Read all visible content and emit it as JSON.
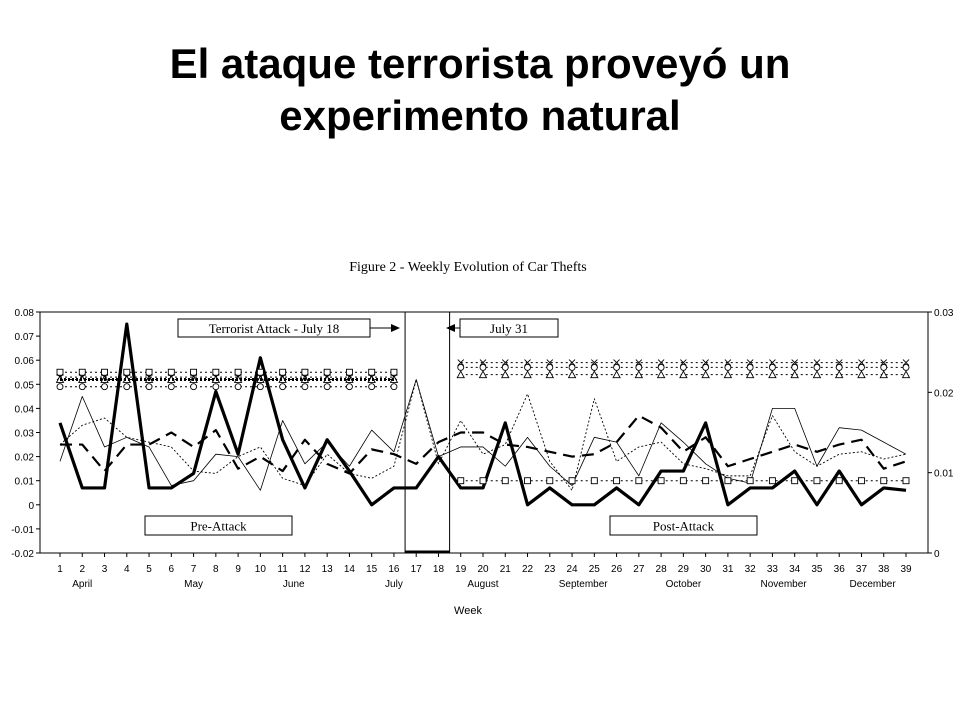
{
  "slide": {
    "title_line1": "El ataque terrorista proveyó un",
    "title_line2": "experimento natural"
  },
  "chart_data": {
    "type": "line",
    "title": "Figure 2 - Weekly Evolution of Car Thefts",
    "xlabel": "Week",
    "ylabel": "",
    "x": [
      1,
      2,
      3,
      4,
      5,
      6,
      7,
      8,
      9,
      10,
      11,
      12,
      13,
      14,
      15,
      16,
      17,
      18,
      19,
      20,
      21,
      22,
      23,
      24,
      25,
      26,
      27,
      28,
      29,
      30,
      31,
      32,
      33,
      34,
      35,
      36,
      37,
      38,
      39
    ],
    "xlim": [
      1,
      39
    ],
    "ylim": [
      -0.02,
      0.08
    ],
    "yticks": [
      "-0.02",
      "-0.01",
      "0",
      "0.01",
      "0.02",
      "0.03",
      "0.04",
      "0.05",
      "0.06",
      "0.07",
      "0.08"
    ],
    "ylim_right": [
      0,
      0.03
    ],
    "yticks_right": [
      "0",
      "0.01",
      "0.02",
      "0.03"
    ],
    "months": [
      {
        "name": "April",
        "week": 2
      },
      {
        "name": "May",
        "week": 7
      },
      {
        "name": "June",
        "week": 11.5
      },
      {
        "name": "July",
        "week": 16
      },
      {
        "name": "August",
        "week": 20
      },
      {
        "name": "September",
        "week": 24.5
      },
      {
        "name": "October",
        "week": 29
      },
      {
        "name": "November",
        "week": 33.5
      },
      {
        "name": "December",
        "week": 37.5
      }
    ],
    "attack_window": [
      16.5,
      18.5
    ],
    "annotations": {
      "attack": "Terrorist Attack - July 18",
      "july31": "July 31",
      "pre": "Pre-Attack",
      "post": "Post-Attack"
    },
    "series": [
      {
        "style": "thick-solid",
        "axis": "left",
        "values": [
          0.034,
          0.007,
          0.007,
          0.075,
          0.007,
          0.007,
          0.013,
          0.047,
          0.021,
          0.061,
          0.027,
          0.007,
          0.027,
          0.014,
          0.0,
          0.007,
          0.007,
          0.02,
          0.007,
          0.007,
          0.034,
          0.0,
          0.007,
          0.0,
          0.0,
          0.007,
          0.0,
          0.014,
          0.014,
          0.034,
          0.0,
          0.007,
          0.007,
          0.014,
          0.0,
          0.014,
          0.0,
          0.007,
          0.006
        ]
      },
      {
        "style": "dashed",
        "axis": "left",
        "values": [
          0.025,
          0.025,
          0.014,
          0.025,
          0.025,
          0.03,
          0.024,
          0.031,
          0.015,
          0.02,
          0.014,
          0.027,
          0.017,
          0.013,
          0.023,
          0.021,
          0.017,
          0.026,
          0.03,
          0.03,
          0.025,
          0.024,
          0.022,
          0.02,
          0.021,
          0.026,
          0.037,
          0.032,
          0.022,
          0.028,
          0.016,
          0.019,
          0.022,
          0.025,
          0.022,
          0.025,
          0.027,
          0.015,
          0.018
        ]
      },
      {
        "style": "thin-solid",
        "axis": "left",
        "values": [
          0.018,
          0.045,
          0.024,
          0.028,
          0.024,
          0.008,
          0.01,
          0.021,
          0.02,
          0.006,
          0.035,
          0.017,
          0.026,
          0.016,
          0.031,
          0.022,
          0.052,
          0.02,
          0.024,
          0.024,
          0.016,
          0.028,
          0.016,
          0.008,
          0.028,
          0.026,
          0.012,
          0.034,
          0.026,
          0.017,
          0.011,
          0.009,
          0.04,
          0.04,
          0.016,
          0.032,
          0.031,
          0.026,
          0.021
        ]
      },
      {
        "style": "dotted",
        "axis": "left",
        "values": [
          0.025,
          0.033,
          0.036,
          0.028,
          0.026,
          0.024,
          0.014,
          0.013,
          0.02,
          0.024,
          0.011,
          0.008,
          0.021,
          0.013,
          0.011,
          0.016,
          0.052,
          0.017,
          0.035,
          0.021,
          0.025,
          0.046,
          0.018,
          0.006,
          0.044,
          0.018,
          0.024,
          0.026,
          0.017,
          0.015,
          0.012,
          0.012,
          0.037,
          0.022,
          0.016,
          0.021,
          0.022,
          0.019,
          0.021
        ]
      },
      {
        "style": "dotted-square",
        "axis": "left",
        "values": [
          0.055,
          0.055,
          0.055,
          0.055,
          0.055,
          0.055,
          0.055,
          0.055,
          0.055,
          0.055,
          0.055,
          0.055,
          0.055,
          0.055,
          0.055,
          0.055,
          null,
          null,
          0.01,
          0.01,
          0.01,
          0.01,
          0.01,
          0.01,
          0.01,
          0.01,
          0.01,
          0.01,
          0.01,
          0.01,
          0.01,
          0.01,
          0.01,
          0.01,
          0.01,
          0.01,
          0.01,
          0.01,
          0.01
        ]
      },
      {
        "style": "dotted-x",
        "axis": "left",
        "values": [
          0.053,
          0.053,
          0.053,
          0.053,
          0.053,
          0.053,
          0.053,
          0.053,
          0.053,
          0.053,
          0.053,
          0.053,
          0.053,
          0.053,
          0.053,
          0.053,
          null,
          null,
          0.059,
          0.059,
          0.059,
          0.059,
          0.059,
          0.059,
          0.059,
          0.059,
          0.059,
          0.059,
          0.059,
          0.059,
          0.059,
          0.059,
          0.059,
          0.059,
          0.059,
          0.059,
          0.059,
          0.059,
          0.059
        ]
      },
      {
        "style": "dotted-circle",
        "axis": "left",
        "values": [
          0.049,
          0.049,
          0.049,
          0.049,
          0.049,
          0.049,
          0.049,
          0.049,
          0.049,
          0.049,
          0.049,
          0.049,
          0.049,
          0.049,
          0.049,
          0.049,
          null,
          null,
          0.057,
          0.057,
          0.057,
          0.057,
          0.057,
          0.057,
          0.057,
          0.057,
          0.057,
          0.057,
          0.057,
          0.057,
          0.057,
          0.057,
          0.057,
          0.057,
          0.057,
          0.057,
          0.057,
          0.057,
          0.057
        ]
      },
      {
        "style": "dotted-triangle",
        "axis": "left",
        "values": [
          0.052,
          0.052,
          0.052,
          0.052,
          0.052,
          0.052,
          0.052,
          0.052,
          0.052,
          0.052,
          0.052,
          0.052,
          0.052,
          0.052,
          0.052,
          0.052,
          null,
          null,
          0.054,
          0.054,
          0.054,
          0.054,
          0.054,
          0.054,
          0.054,
          0.054,
          0.054,
          0.054,
          0.054,
          0.054,
          0.054,
          0.054,
          0.054,
          0.054,
          0.054,
          0.054,
          0.054,
          0.054,
          0.054
        ]
      },
      {
        "style": "thick-dotted",
        "axis": "left",
        "values": [
          0.052,
          0.052,
          0.052,
          0.052,
          0.052,
          0.052,
          0.052,
          0.052,
          0.052,
          0.052,
          0.052,
          0.052,
          0.052,
          0.052,
          0.052,
          0.052,
          null,
          null,
          null,
          null,
          null,
          null,
          null,
          null,
          null,
          null,
          null,
          null,
          null,
          null,
          null,
          null,
          null,
          null,
          null,
          null,
          null,
          null,
          null
        ]
      }
    ],
    "grid": false,
    "legend": "none"
  }
}
